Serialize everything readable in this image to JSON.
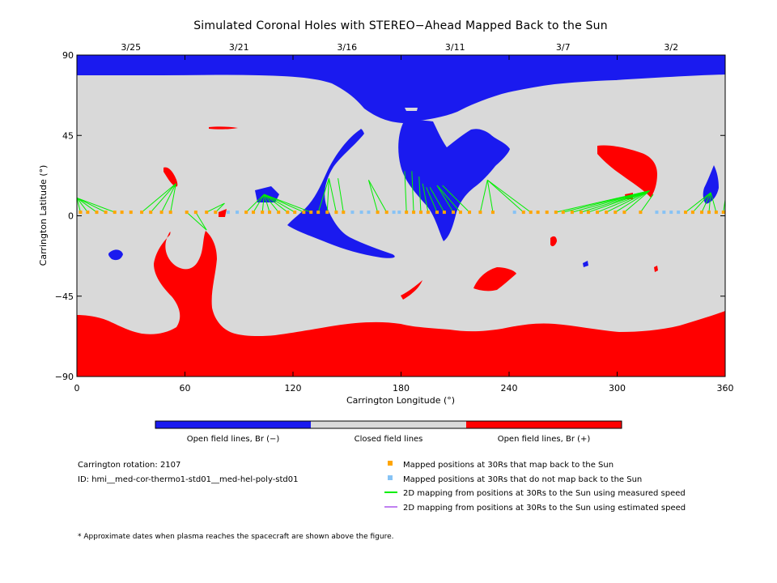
{
  "chart_data": {
    "type": "map",
    "title": "Simulated Coronal Holes with STEREO−Ahead Mapped Back to the Sun",
    "xlabel": "Carrington Longitude (°)",
    "ylabel": "Carrington Latitude (°)",
    "xlim": [
      0,
      360
    ],
    "ylim": [
      -90,
      90
    ],
    "x_ticks": [
      0,
      60,
      120,
      180,
      240,
      300,
      360
    ],
    "y_ticks": [
      -90,
      -45,
      0,
      45,
      90
    ],
    "x_tick_labels": [
      "0",
      "60",
      "120",
      "180",
      "240",
      "300",
      "360"
    ],
    "y_tick_labels": [
      "−90",
      "−45",
      "0",
      "45",
      "90"
    ],
    "top_axis_dates": [
      {
        "lon": 30,
        "label": "3/25"
      },
      {
        "lon": 90,
        "label": "3/21"
      },
      {
        "lon": 150,
        "label": "3/16"
      },
      {
        "lon": 210,
        "label": "3/11"
      },
      {
        "lon": 270,
        "label": "3/7"
      },
      {
        "lon": 330,
        "label": "3/2"
      }
    ],
    "colors": {
      "open_negative": "#1a1aef",
      "closed": "#d9d9d9",
      "open_positive": "#ff0000",
      "mapped": "#ffa500",
      "not_mapped": "#87c3f5",
      "measured_line": "#00ee00",
      "estimated_line": "#c080f0"
    },
    "mapped_points": [
      {
        "lon": 2,
        "lat": 2,
        "foot_lon": 0,
        "foot_lat": 10
      },
      {
        "lon": 6,
        "lat": 2,
        "foot_lon": 0,
        "foot_lat": 10
      },
      {
        "lon": 11,
        "lat": 2,
        "foot_lon": 0,
        "foot_lat": 10
      },
      {
        "lon": 16,
        "lat": 2,
        "foot_lon": 0,
        "foot_lat": 10
      },
      {
        "lon": 21,
        "lat": 2,
        "foot_lon": 0,
        "foot_lat": 10
      },
      {
        "lon": 25,
        "lat": 2
      },
      {
        "lon": 30,
        "lat": 2
      },
      {
        "lon": 36,
        "lat": 2,
        "foot_lon": 55,
        "foot_lat": 18
      },
      {
        "lon": 41,
        "lat": 2,
        "foot_lon": 55,
        "foot_lat": 18
      },
      {
        "lon": 47,
        "lat": 2,
        "foot_lon": 55,
        "foot_lat": 18
      },
      {
        "lon": 52,
        "lat": 2,
        "foot_lon": 55,
        "foot_lat": 18
      },
      {
        "lon": 61,
        "lat": 2,
        "foot_lon": 72,
        "foot_lat": -8
      },
      {
        "lon": 66,
        "lat": 2,
        "foot_lon": 72,
        "foot_lat": -8
      },
      {
        "lon": 72,
        "lat": 2,
        "foot_lon": 82,
        "foot_lat": 7
      },
      {
        "lon": 77,
        "lat": 2,
        "foot_lon": 82,
        "foot_lat": 7
      },
      {
        "lon": 94,
        "lat": 2,
        "foot_lon": 104,
        "foot_lat": 12
      },
      {
        "lon": 98,
        "lat": 2,
        "foot_lon": 104,
        "foot_lat": 12
      },
      {
        "lon": 103,
        "lat": 2,
        "foot_lon": 104,
        "foot_lat": 12
      },
      {
        "lon": 107,
        "lat": 2,
        "foot_lon": 104,
        "foot_lat": 12
      },
      {
        "lon": 112,
        "lat": 2,
        "foot_lon": 104,
        "foot_lat": 12
      },
      {
        "lon": 117,
        "lat": 2,
        "foot_lon": 104,
        "foot_lat": 12
      },
      {
        "lon": 121,
        "lat": 2,
        "foot_lon": 104,
        "foot_lat": 12
      },
      {
        "lon": 126,
        "lat": 2,
        "foot_lon": 104,
        "foot_lat": 12
      },
      {
        "lon": 130,
        "lat": 2,
        "foot_lon": 104,
        "foot_lat": 12
      },
      {
        "lon": 134,
        "lat": 2,
        "foot_lon": 140,
        "foot_lat": 21
      },
      {
        "lon": 139,
        "lat": 2,
        "foot_lon": 140,
        "foot_lat": 21
      },
      {
        "lon": 144,
        "lat": 2,
        "foot_lon": 140,
        "foot_lat": 21
      },
      {
        "lon": 148,
        "lat": 2,
        "foot_lon": 145,
        "foot_lat": 21
      },
      {
        "lon": 167,
        "lat": 2,
        "foot_lon": 162,
        "foot_lat": 20
      },
      {
        "lon": 172,
        "lat": 2,
        "foot_lon": 162,
        "foot_lat": 20
      },
      {
        "lon": 183,
        "lat": 2,
        "foot_lon": 182,
        "foot_lat": 25
      },
      {
        "lon": 187,
        "lat": 2,
        "foot_lon": 186,
        "foot_lat": 25
      },
      {
        "lon": 191,
        "lat": 2,
        "foot_lon": 190,
        "foot_lat": 22
      },
      {
        "lon": 195,
        "lat": 2,
        "foot_lon": 192,
        "foot_lat": 18
      },
      {
        "lon": 200,
        "lat": 2,
        "foot_lon": 194,
        "foot_lat": 16
      },
      {
        "lon": 204,
        "lat": 2,
        "foot_lon": 196,
        "foot_lat": 16
      },
      {
        "lon": 209,
        "lat": 2,
        "foot_lon": 200,
        "foot_lat": 17
      },
      {
        "lon": 213,
        "lat": 2,
        "foot_lon": 200,
        "foot_lat": 17
      },
      {
        "lon": 218,
        "lat": 2,
        "foot_lon": 203,
        "foot_lat": 17
      },
      {
        "lon": 224,
        "lat": 2,
        "foot_lon": 228,
        "foot_lat": 20
      },
      {
        "lon": 231,
        "lat": 2,
        "foot_lon": 228,
        "foot_lat": 20
      },
      {
        "lon": 248,
        "lat": 2,
        "foot_lon": 228,
        "foot_lat": 20
      },
      {
        "lon": 252,
        "lat": 2,
        "foot_lon": 228,
        "foot_lat": 20
      },
      {
        "lon": 256,
        "lat": 2
      },
      {
        "lon": 261,
        "lat": 2
      },
      {
        "lon": 266,
        "lat": 2,
        "foot_lon": 318,
        "foot_lat": 14
      },
      {
        "lon": 270,
        "lat": 2,
        "foot_lon": 318,
        "foot_lat": 14
      },
      {
        "lon": 275,
        "lat": 2,
        "foot_lon": 318,
        "foot_lat": 14
      },
      {
        "lon": 280,
        "lat": 2,
        "foot_lon": 318,
        "foot_lat": 14
      },
      {
        "lon": 284,
        "lat": 2,
        "foot_lon": 318,
        "foot_lat": 14
      },
      {
        "lon": 289,
        "lat": 2,
        "foot_lon": 318,
        "foot_lat": 14
      },
      {
        "lon": 294,
        "lat": 2,
        "foot_lon": 318,
        "foot_lat": 14
      },
      {
        "lon": 299,
        "lat": 2,
        "foot_lon": 318,
        "foot_lat": 14
      },
      {
        "lon": 304,
        "lat": 2,
        "foot_lon": 318,
        "foot_lat": 14
      },
      {
        "lon": 313,
        "lat": 2,
        "foot_lon": 320,
        "foot_lat": 12
      },
      {
        "lon": 338,
        "lat": 2,
        "foot_lon": 352,
        "foot_lat": 13
      },
      {
        "lon": 342,
        "lat": 2,
        "foot_lon": 352,
        "foot_lat": 13
      },
      {
        "lon": 347,
        "lat": 2,
        "foot_lon": 352,
        "foot_lat": 13
      },
      {
        "lon": 351,
        "lat": 2,
        "foot_lon": 352,
        "foot_lat": 13
      },
      {
        "lon": 355,
        "lat": 2,
        "foot_lon": 352,
        "foot_lat": 13
      },
      {
        "lon": 359,
        "lat": 2,
        "foot_lon": 360,
        "foot_lat": 9
      }
    ],
    "unmapped_points": [
      {
        "lon": 84,
        "lat": 2
      },
      {
        "lon": 89,
        "lat": 2
      },
      {
        "lon": 153,
        "lat": 2
      },
      {
        "lon": 158,
        "lat": 2
      },
      {
        "lon": 162,
        "lat": 2
      },
      {
        "lon": 176,
        "lat": 2
      },
      {
        "lon": 179,
        "lat": 2
      },
      {
        "lon": 243,
        "lat": 2
      },
      {
        "lon": 322,
        "lat": 2
      },
      {
        "lon": 326,
        "lat": 2
      },
      {
        "lon": 330,
        "lat": 2
      },
      {
        "lon": 334,
        "lat": 2
      }
    ]
  },
  "colorbar": {
    "labels": [
      "Open field lines, Br (−)",
      "Closed field lines",
      "Open field lines, Br (+)"
    ]
  },
  "info": {
    "rotation": "Carrington rotation: 2107",
    "id": "ID: hmi__med-cor-thermo1-std01__med-hel-poly-std01"
  },
  "legend": {
    "mapped": "Mapped positions at 30Rs that map back to the Sun",
    "not_mapped": "Mapped positions at 30Rs that do not map back to the Sun",
    "measured": "2D mapping from positions at 30Rs to the Sun using measured speed",
    "estimated": "2D mapping from positions at 30Rs to the Sun using estimated speed"
  },
  "footnote": "* Approximate dates when plasma reaches the spacecraft are shown above the figure."
}
